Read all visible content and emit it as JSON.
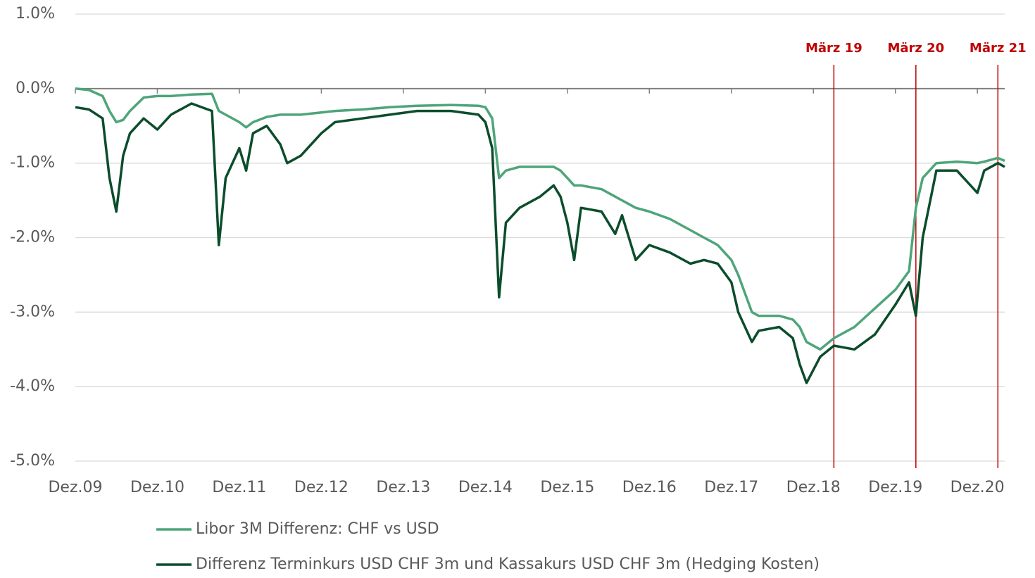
{
  "chart_data": {
    "type": "line",
    "x": [
      0,
      2,
      4,
      5,
      6,
      7,
      8,
      10,
      12,
      14,
      17,
      20,
      21,
      22,
      24,
      25,
      26,
      28,
      30,
      31,
      33,
      36,
      38,
      42,
      46,
      50,
      55,
      59,
      60,
      61,
      62,
      63,
      65,
      68,
      70,
      71,
      72,
      73,
      74,
      77,
      79,
      80,
      82,
      84,
      87,
      90,
      92,
      94,
      96,
      97,
      99,
      100,
      103,
      105,
      106,
      107,
      109,
      111,
      114,
      117,
      120,
      122,
      123,
      124,
      126,
      129,
      132,
      133,
      135,
      136
    ],
    "series": [
      {
        "name": "Libor 3M Differenz: CHF vs USD",
        "color": "#4ea57a",
        "values": [
          0.0,
          -0.02,
          -0.1,
          -0.3,
          -0.45,
          -0.42,
          -0.3,
          -0.12,
          -0.1,
          -0.1,
          -0.08,
          -0.07,
          -0.3,
          -0.35,
          -0.45,
          -0.52,
          -0.45,
          -0.38,
          -0.35,
          -0.35,
          -0.35,
          -0.32,
          -0.3,
          -0.28,
          -0.25,
          -0.23,
          -0.22,
          -0.23,
          -0.25,
          -0.4,
          -1.2,
          -1.1,
          -1.05,
          -1.05,
          -1.05,
          -1.1,
          -1.2,
          -1.3,
          -1.3,
          -1.35,
          -1.45,
          -1.5,
          -1.6,
          -1.65,
          -1.75,
          -1.9,
          -2.0,
          -2.1,
          -2.3,
          -2.5,
          -3.0,
          -3.05,
          -3.05,
          -3.1,
          -3.2,
          -3.4,
          -3.5,
          -3.35,
          -3.2,
          -2.95,
          -2.7,
          -2.45,
          -1.6,
          -1.2,
          -1.0,
          -0.98,
          -1.0,
          -0.98,
          -0.93,
          -0.97
        ]
      },
      {
        "name": "Differenz Terminkurs USD CHF 3m und Kassakurs USD CHF 3m (Hedging Kosten)",
        "color": "#0b4d2b",
        "values": [
          -0.25,
          -0.28,
          -0.4,
          -1.2,
          -1.65,
          -0.9,
          -0.6,
          -0.4,
          -0.55,
          -0.35,
          -0.2,
          -0.3,
          -2.1,
          -1.2,
          -0.8,
          -1.1,
          -0.6,
          -0.5,
          -0.75,
          -1.0,
          -0.9,
          -0.6,
          -0.45,
          -0.4,
          -0.35,
          -0.3,
          -0.3,
          -0.35,
          -0.45,
          -0.8,
          -2.8,
          -1.8,
          -1.6,
          -1.45,
          -1.3,
          -1.45,
          -1.8,
          -2.3,
          -1.6,
          -1.65,
          -1.95,
          -1.7,
          -2.3,
          -2.1,
          -2.2,
          -2.35,
          -2.3,
          -2.35,
          -2.6,
          -3.0,
          -3.4,
          -3.25,
          -3.2,
          -3.35,
          -3.7,
          -3.95,
          -3.6,
          -3.45,
          -3.5,
          -3.3,
          -2.9,
          -2.6,
          -3.05,
          -2.0,
          -1.1,
          -1.1,
          -1.4,
          -1.1,
          -1.0,
          -1.05
        ]
      }
    ],
    "xlim": [
      0,
      136
    ],
    "xticks": [
      {
        "value": 0,
        "label": "Dez.09"
      },
      {
        "value": 12,
        "label": "Dez.10"
      },
      {
        "value": 24,
        "label": "Dez.11"
      },
      {
        "value": 36,
        "label": "Dez.12"
      },
      {
        "value": 48,
        "label": "Dez.13"
      },
      {
        "value": 60,
        "label": "Dez.14"
      },
      {
        "value": 72,
        "label": "Dez.15"
      },
      {
        "value": 84,
        "label": "Dez.16"
      },
      {
        "value": 96,
        "label": "Dez.17"
      },
      {
        "value": 108,
        "label": "Dez.18"
      },
      {
        "value": 120,
        "label": "Dez.19"
      },
      {
        "value": 132,
        "label": "Dez.20"
      }
    ],
    "ylim": [
      -5,
      1
    ],
    "yticks": [
      {
        "value": -5,
        "label": "-5.0%"
      },
      {
        "value": -4,
        "label": "-4.0%"
      },
      {
        "value": -3,
        "label": "-3.0%"
      },
      {
        "value": -2,
        "label": "-2.0%"
      },
      {
        "value": -1,
        "label": "-1.0%"
      },
      {
        "value": 0,
        "label": "0.0%"
      },
      {
        "value": 1,
        "label": "1.0%"
      }
    ],
    "grid": true,
    "markers": [
      {
        "x": 111,
        "label": "März 19"
      },
      {
        "x": 123,
        "label": "März 20"
      },
      {
        "x": 135,
        "label": "März 21"
      }
    ],
    "marker_color": "#c00000"
  }
}
